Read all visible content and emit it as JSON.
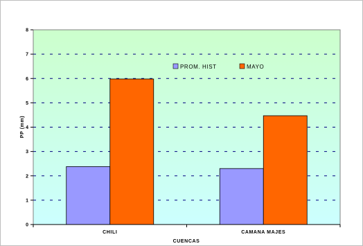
{
  "chart_data": {
    "type": "bar",
    "categories": [
      "CHILI",
      "CAMANA MAJES"
    ],
    "series": [
      {
        "name": "PROM. HIST",
        "values": [
          2.38,
          2.3
        ],
        "color": "#9999ff"
      },
      {
        "name": "MAYO",
        "values": [
          5.98,
          4.47
        ],
        "color": "#ff6600"
      }
    ],
    "xlabel": "CUENCAS",
    "ylabel": "PP (mm)",
    "ylim": [
      0,
      8
    ],
    "yticks": [
      0,
      1,
      2,
      3,
      4,
      5,
      6,
      7,
      8
    ],
    "grid": true,
    "legend": "top-center",
    "plot_background_gradient": [
      "#ccffcc",
      "#ccffff"
    ]
  }
}
